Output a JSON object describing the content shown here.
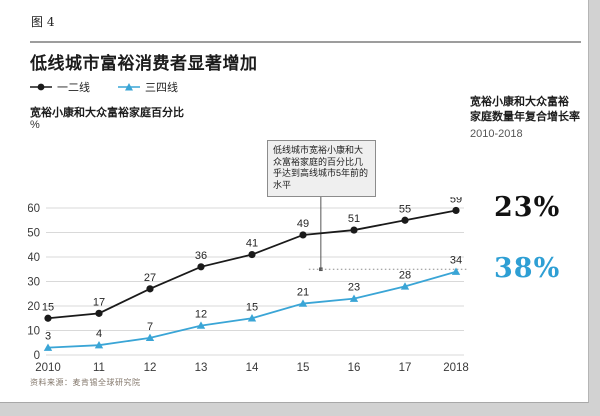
{
  "figure": {
    "label": "图 4",
    "title": "低线城市富裕消费者显著增加",
    "source": "资料来源：麦肯锡全球研究院"
  },
  "right_column": {
    "heading_line1": "宽裕小康和大众富裕",
    "heading_line2": "家庭数量年复合增长率",
    "period": "2010-2018"
  },
  "colors": {
    "tier12_line": "#1a1a1a",
    "tier34_line": "#3aa5d6",
    "cagr_blue": "#2e9fd4",
    "grid": "#d9d9d9",
    "annotation_border": "#8c8c8c",
    "annotation_bg": "#efefef"
  },
  "chart_data": {
    "type": "line",
    "title": "低线城市富裕消费者显著增加",
    "categories": [
      "2010",
      "11",
      "12",
      "13",
      "14",
      "15",
      "16",
      "17",
      "2018"
    ],
    "series": [
      {
        "name": "一二线",
        "marker": "circle",
        "color": "#1a1a1a",
        "values": [
          15,
          17,
          27,
          36,
          41,
          49,
          51,
          55,
          59
        ],
        "cagr": "23%"
      },
      {
        "name": "三四线",
        "marker": "triangle",
        "color": "#3aa5d6",
        "values": [
          3,
          4,
          7,
          12,
          15,
          21,
          23,
          28,
          34
        ],
        "cagr": "38%"
      }
    ],
    "ylabel": "宽裕小康和大众富裕家庭百分比",
    "y_unit": "%",
    "yticks": [
      0,
      10,
      20,
      30,
      40,
      50,
      60
    ],
    "ylim": [
      0,
      65
    ],
    "grid": true,
    "legend_position": "top-left",
    "annotation": {
      "text": "低线城市宽裕小康和大众富裕家庭的百分比几乎达到高线城市5年前的水平",
      "connector_index": 5.35,
      "dash_value": 35
    }
  }
}
